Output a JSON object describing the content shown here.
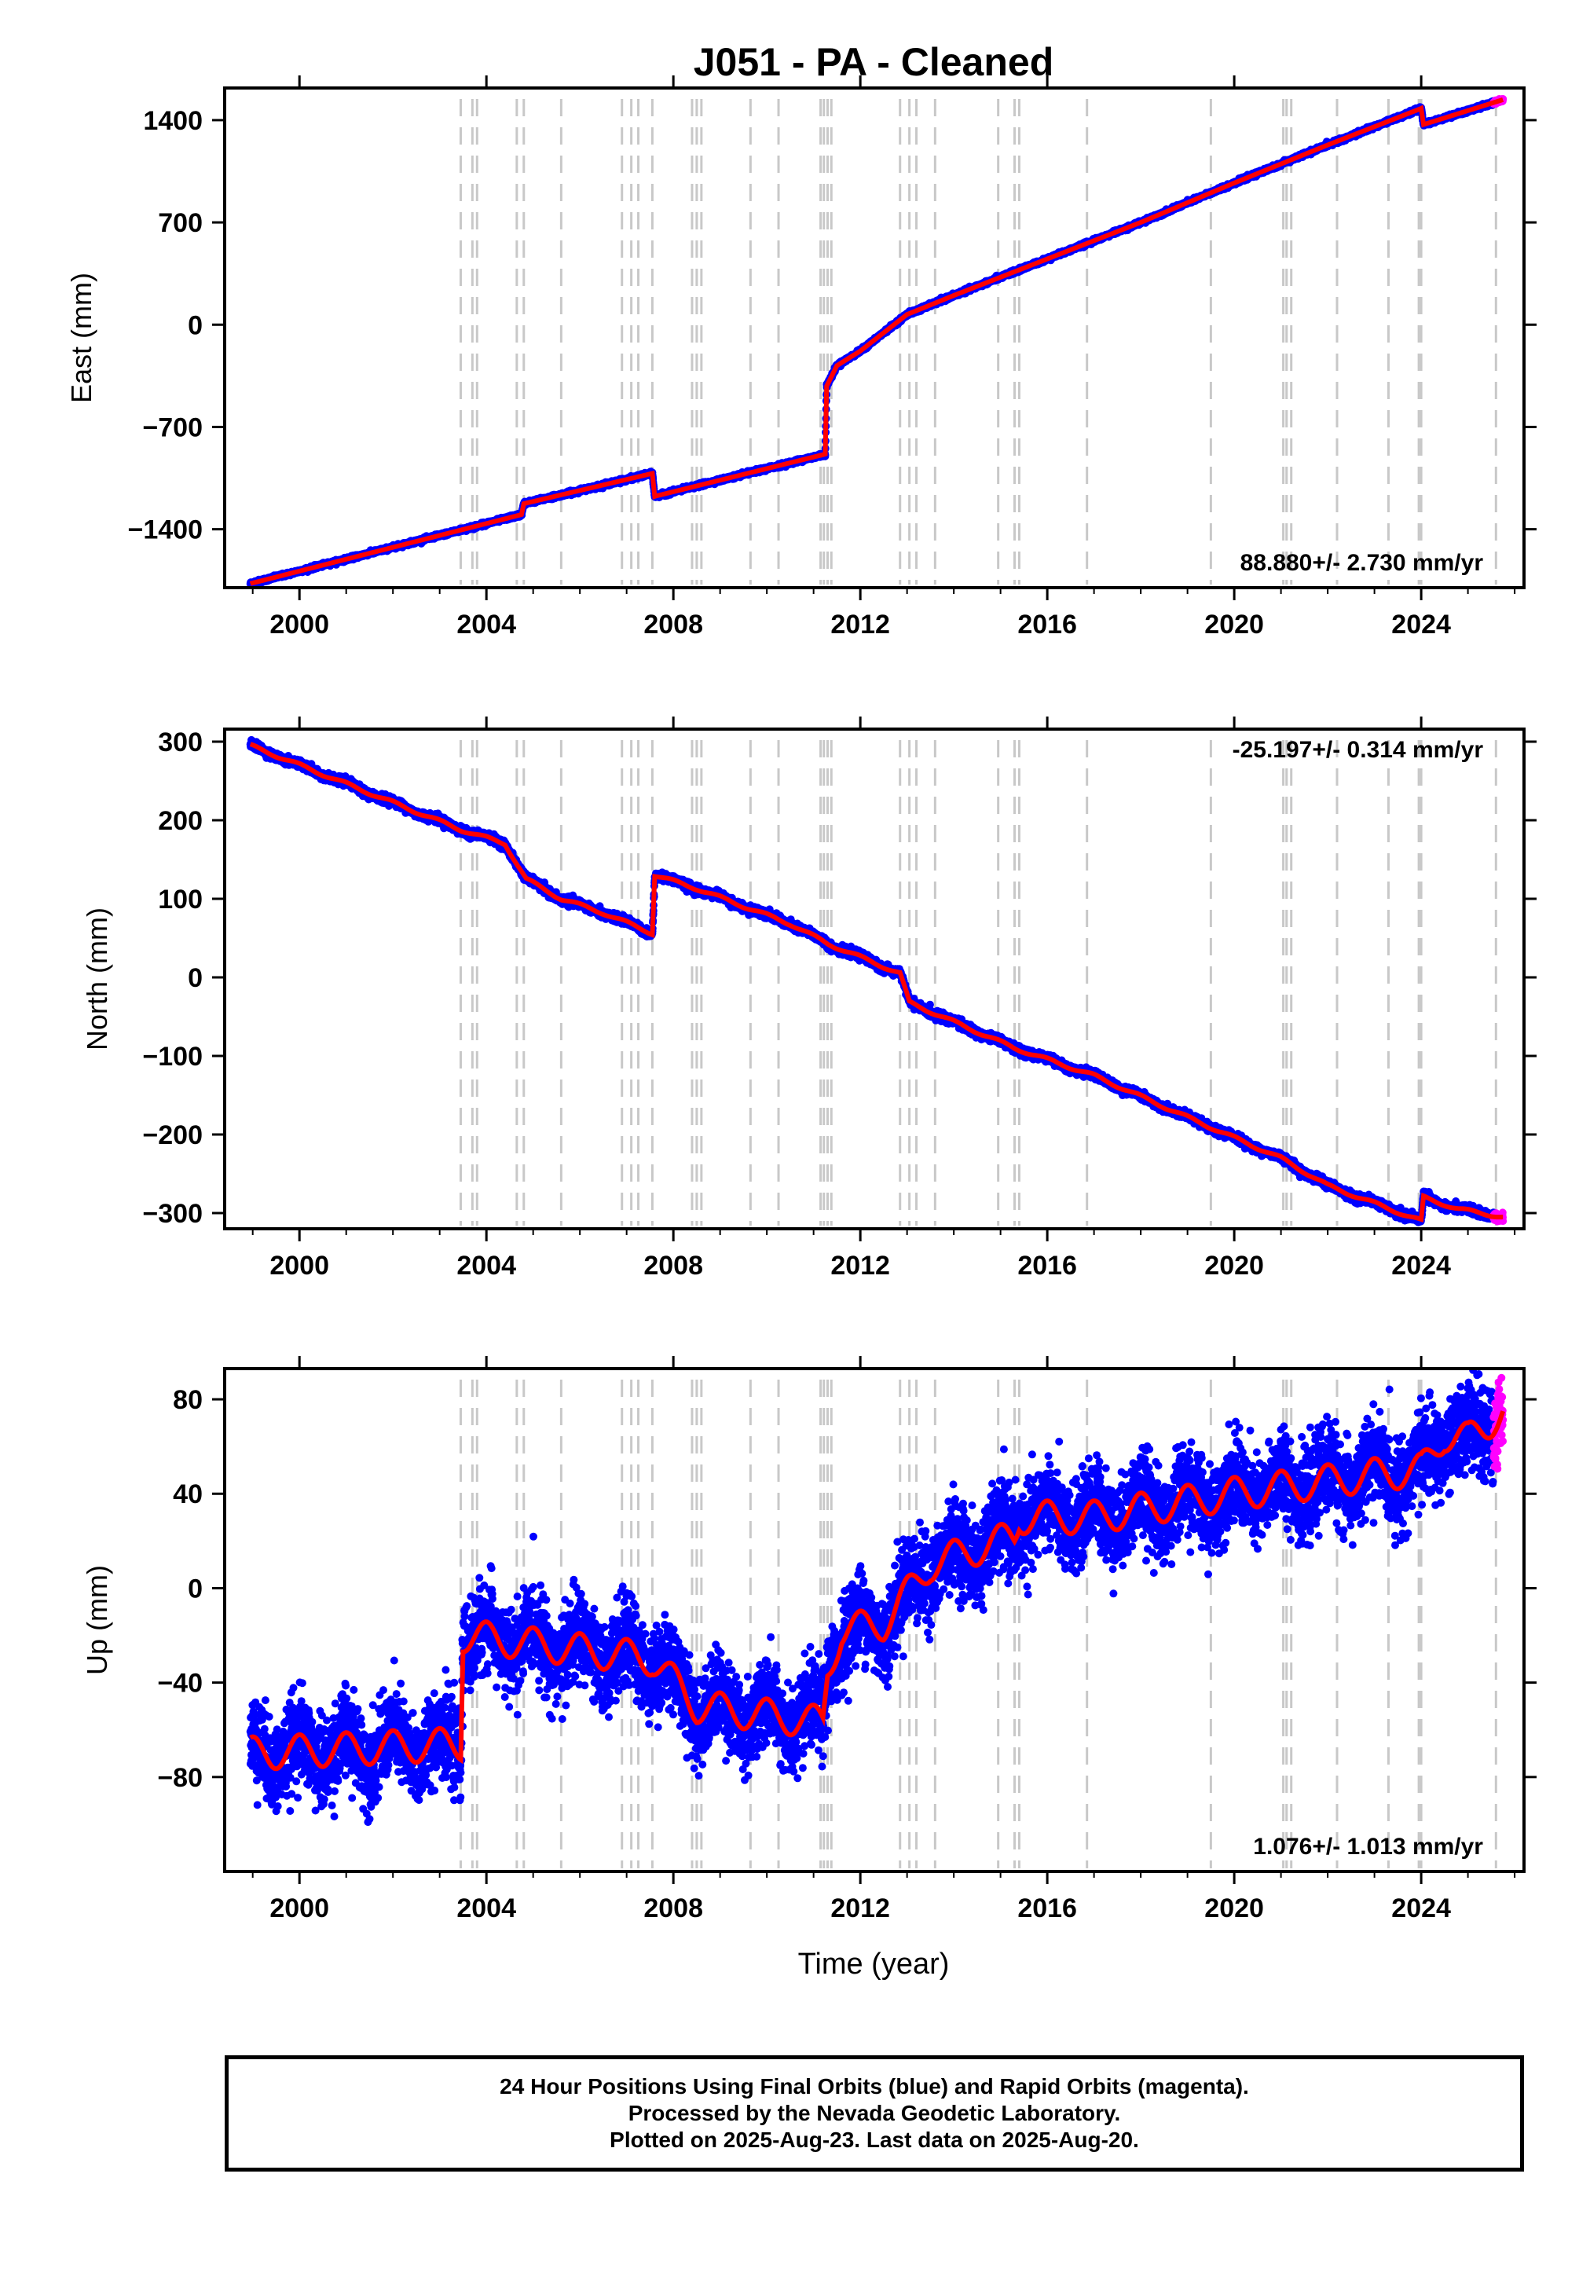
{
  "title": "J051  - PA - Cleaned",
  "colors": {
    "final_points": "#0000ff",
    "rapid_points": "#ff00ff",
    "model_line": "#ff0000",
    "event_lines": "#c8c8c8",
    "frame": "#000000"
  },
  "xaxis": {
    "label": "Time (year)",
    "range": [
      1998.4,
      2026.2
    ],
    "ticks": [
      2000,
      2004,
      2008,
      2012,
      2016,
      2020,
      2024
    ],
    "tick_labels": [
      "2000",
      "2004",
      "2008",
      "2012",
      "2016",
      "2020",
      "2024"
    ]
  },
  "event_lines_years": [
    2003.45,
    2003.7,
    2003.8,
    2004.65,
    2004.8,
    2005.6,
    2006.9,
    2007.1,
    2007.25,
    2007.55,
    2008.4,
    2008.5,
    2008.6,
    2009.65,
    2010.25,
    2011.15,
    2011.22,
    2011.3,
    2011.38,
    2012.85,
    2013.05,
    2013.2,
    2013.6,
    2014.95,
    2015.3,
    2015.4,
    2016.85,
    2019.5,
    2021.05,
    2021.12,
    2021.22,
    2022.2,
    2023.3,
    2023.95,
    2024.0,
    2025.6
  ],
  "chart_data": [
    {
      "type": "scatter",
      "component": "East",
      "ylabel": "East (mm)",
      "ylim": [
        -1800,
        1620
      ],
      "yticks": [
        1400,
        700,
        0,
        -700,
        -1400
      ],
      "ytick_labels": [
        "1400",
        "700",
        "0",
        "−700",
        "−1400"
      ],
      "rate_label": "88.880+/- 2.730 mm/yr",
      "noise_mm": 6,
      "seasonal_mm": 0,
      "model": [
        [
          1998.95,
          -1772
        ],
        [
          2004.75,
          -1300
        ],
        [
          2004.8,
          -1225
        ],
        [
          2007.55,
          -1018
        ],
        [
          2007.6,
          -1175
        ],
        [
          2011.25,
          -886
        ],
        [
          2011.28,
          -420
        ],
        [
          2011.5,
          -280
        ],
        [
          2012,
          -180
        ],
        [
          2013,
          70
        ],
        [
          2014,
          200
        ],
        [
          2016,
          450
        ],
        [
          2018,
          700
        ],
        [
          2020,
          970
        ],
        [
          2022,
          1230
        ],
        [
          2024,
          1480
        ],
        [
          2024.05,
          1370
        ],
        [
          2025.75,
          1540
        ]
      ],
      "rapid_from": 2025.55,
      "event_lines_visible": true
    },
    {
      "type": "scatter",
      "component": "North",
      "ylabel": "North (mm)",
      "ylim": [
        -320,
        316
      ],
      "yticks": [
        300,
        200,
        100,
        0,
        -100,
        -200,
        -300
      ],
      "ytick_labels": [
        "300",
        "200",
        "100",
        "0",
        "−100",
        "−200",
        "−300"
      ],
      "rate_label": "-25.197+/- 0.314 mm/yr",
      "noise_mm": 2.5,
      "seasonal_mm": 2,
      "model": [
        [
          1998.95,
          295
        ],
        [
          1999.3,
          287
        ],
        [
          2003.45,
          188
        ],
        [
          2004.4,
          170
        ],
        [
          2004.85,
          125
        ],
        [
          2005.6,
          100
        ],
        [
          2006.5,
          82
        ],
        [
          2007.55,
          56
        ],
        [
          2007.6,
          130
        ],
        [
          2008.5,
          113
        ],
        [
          2010.5,
          68
        ],
        [
          2011.3,
          43
        ],
        [
          2012.85,
          5
        ],
        [
          2013.05,
          -32
        ],
        [
          2015.3,
          -90
        ],
        [
          2017,
          -125
        ],
        [
          2019,
          -178
        ],
        [
          2021,
          -230
        ],
        [
          2022,
          -265
        ],
        [
          2024,
          -310
        ],
        [
          2024.05,
          -280
        ],
        [
          2024.8,
          -295
        ],
        [
          2025.75,
          -305
        ]
      ],
      "rapid_from": 2025.55,
      "event_lines_visible": true
    },
    {
      "type": "scatter",
      "component": "Up",
      "ylabel": "Up (mm)",
      "ylim": [
        -120,
        93
      ],
      "yticks": [
        80,
        40,
        0,
        -40,
        -80
      ],
      "ytick_labels": [
        "80",
        "40",
        "0",
        "−40",
        "−80"
      ],
      "rate_label": "1.076+/- 1.013 mm/yr",
      "noise_mm": 9,
      "seasonal_mm": 7,
      "model": [
        [
          1998.95,
          -70
        ],
        [
          2003.45,
          -66
        ],
        [
          2003.5,
          -20
        ],
        [
          2007.55,
          -30
        ],
        [
          2008.5,
          -50
        ],
        [
          2011.2,
          -57
        ],
        [
          2011.3,
          -35
        ],
        [
          2011.6,
          -18
        ],
        [
          2012.5,
          -15
        ],
        [
          2013.5,
          10
        ],
        [
          2015.3,
          22
        ],
        [
          2015.4,
          30
        ],
        [
          2017,
          30
        ],
        [
          2020,
          40
        ],
        [
          2023,
          48
        ],
        [
          2024,
          50
        ],
        [
          2024.5,
          65
        ],
        [
          2025,
          63
        ],
        [
          2025.75,
          75
        ]
      ],
      "rapid_from": 2025.55,
      "event_lines_visible": true
    }
  ],
  "footer": {
    "line1": "24 Hour Positions Using Final Orbits (blue) and Rapid Orbits (magenta).",
    "line2": "Processed by the Nevada Geodetic Laboratory.",
    "line3": "Plotted on 2025-Aug-23. Last data on 2025-Aug-20."
  }
}
